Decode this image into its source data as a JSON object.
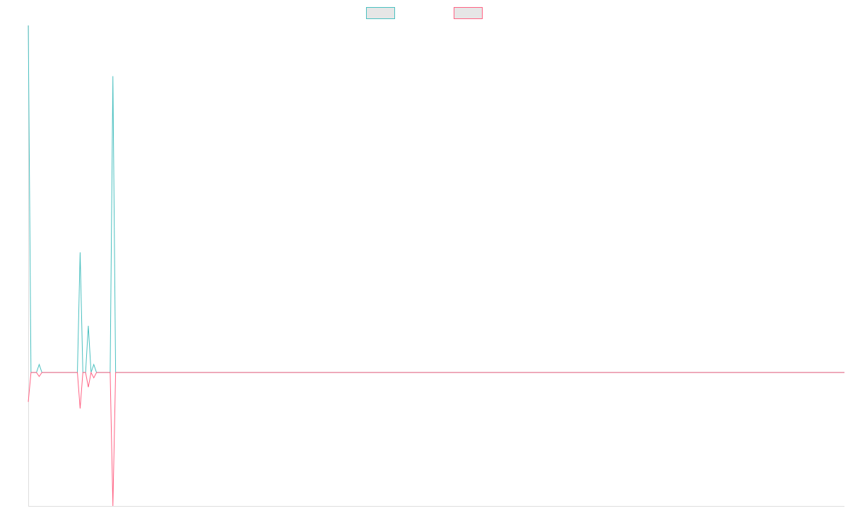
{
  "chart_data": {
    "type": "line",
    "x_count": 300,
    "ylim": [
      -100,
      260
    ],
    "grid": false,
    "legend": "top",
    "series": [
      {
        "color": "#4bc0c0",
        "legend_fill": "#e6e6e6",
        "points": [
          [
            0,
            260
          ],
          [
            1,
            0
          ],
          [
            2,
            0
          ],
          [
            3,
            0
          ],
          [
            4,
            6
          ],
          [
            5,
            0
          ],
          [
            18,
            0
          ],
          [
            19,
            90
          ],
          [
            20,
            0
          ],
          [
            21,
            0
          ],
          [
            22,
            35
          ],
          [
            23,
            0
          ],
          [
            24,
            6
          ],
          [
            25,
            0
          ],
          [
            30,
            0
          ],
          [
            31,
            222
          ],
          [
            32,
            0
          ],
          [
            299,
            0
          ]
        ]
      },
      {
        "color": "#ff6384",
        "legend_fill": "#e6e6e6",
        "points": [
          [
            0,
            -22
          ],
          [
            1,
            0
          ],
          [
            2,
            0
          ],
          [
            3,
            0
          ],
          [
            4,
            -3
          ],
          [
            5,
            0
          ],
          [
            18,
            0
          ],
          [
            19,
            -27
          ],
          [
            20,
            0
          ],
          [
            21,
            0
          ],
          [
            22,
            -11
          ],
          [
            23,
            0
          ],
          [
            24,
            -4
          ],
          [
            25,
            0
          ],
          [
            30,
            0
          ],
          [
            31,
            -100
          ],
          [
            32,
            0
          ],
          [
            299,
            0
          ]
        ]
      }
    ]
  }
}
